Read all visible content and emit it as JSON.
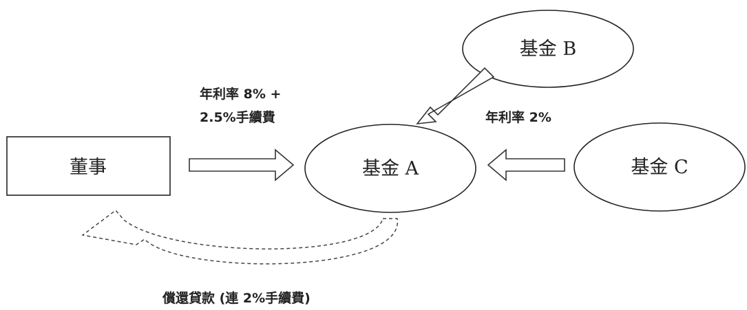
{
  "nodes": {
    "director": "董事",
    "fund_a": "基金 A",
    "fund_b": "基金 B",
    "fund_c": "基金 C"
  },
  "edges": {
    "director_to_a": {
      "line1": "年利率 8% +",
      "line2": "2.5%手續費"
    },
    "c_to_a": "年利率 2%",
    "repay": "償還貸款 (連 2%手續費)"
  }
}
